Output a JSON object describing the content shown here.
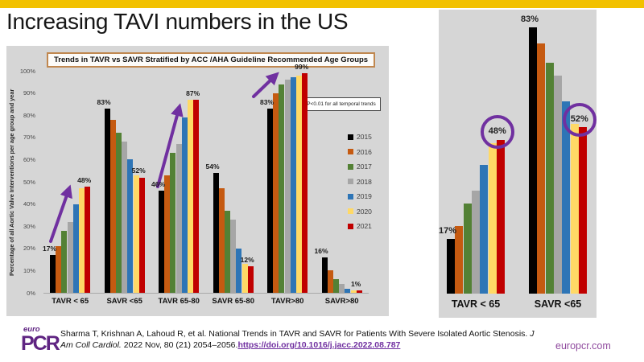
{
  "slide": {
    "title": "Increasing TAVI numbers in the US"
  },
  "colors": {
    "top_bar": "#F2C100",
    "panel_bg": "#D6D6D6",
    "accent_purple": "#7030A0",
    "logo_purple": "#5F2482",
    "website_purple": "#8F4A9E"
  },
  "chart_data": [
    {
      "id": "main",
      "type": "bar",
      "title": "Trends in TAVR vs SAVR Stratified by ACC /AHA Guideline Recommended Age Groups",
      "xlabel": "",
      "ylabel": "Percentage of all Aortic Valve Interventions per age group and year",
      "note": "P<0.01 for all temporal trends",
      "ylim": [
        0,
        100
      ],
      "grid": false,
      "legend_position": "right",
      "y_ticks": [
        "0%",
        "10%",
        "20%",
        "30%",
        "40%",
        "50%",
        "60%",
        "70%",
        "80%",
        "90%",
        "100%"
      ],
      "categories": [
        "TAVR < 65",
        "SAVR <65",
        "TAVR 65-80",
        "SAVR 65-80",
        "TAVR>80",
        "SAVR>80"
      ],
      "series": [
        {
          "name": "2015",
          "color": "#000000",
          "values": [
            17,
            83,
            46,
            54,
            83,
            16
          ]
        },
        {
          "name": "2016",
          "color": "#C55A11",
          "values": [
            21,
            78,
            53,
            47,
            90,
            10
          ]
        },
        {
          "name": "2017",
          "color": "#538135",
          "values": [
            28,
            72,
            63,
            37,
            94,
            6
          ]
        },
        {
          "name": "2018",
          "color": "#A6A6A6",
          "values": [
            32,
            68,
            67,
            33,
            96,
            4
          ]
        },
        {
          "name": "2019",
          "color": "#2E75B6",
          "values": [
            40,
            60,
            79,
            20,
            97,
            2
          ]
        },
        {
          "name": "2020",
          "color": "#FFD966",
          "values": [
            47,
            53,
            87,
            13,
            98,
            1
          ]
        },
        {
          "name": "2021",
          "color": "#C00000",
          "values": [
            48,
            52,
            87,
            12,
            99,
            1
          ]
        }
      ],
      "data_labels": [
        {
          "cat": 0,
          "year": "2015",
          "text": "17%"
        },
        {
          "cat": 0,
          "year": "2021",
          "text": "48%"
        },
        {
          "cat": 1,
          "year": "2015",
          "text": "83%"
        },
        {
          "cat": 1,
          "year": "2021",
          "text": "52%"
        },
        {
          "cat": 2,
          "year": "2015",
          "text": "46%"
        },
        {
          "cat": 2,
          "year": "2021",
          "text": "87%"
        },
        {
          "cat": 3,
          "year": "2015",
          "text": "54%"
        },
        {
          "cat": 3,
          "year": "2021",
          "text": "12%"
        },
        {
          "cat": 4,
          "year": "2015",
          "text": "83%"
        },
        {
          "cat": 4,
          "year": "2021",
          "text": "99%"
        },
        {
          "cat": 5,
          "year": "2015",
          "text": "16%"
        },
        {
          "cat": 5,
          "year": "2021",
          "text": "1%"
        }
      ],
      "arrows_on_categories": [
        "TAVR < 65",
        "TAVR 65-80",
        "TAVR>80"
      ]
    },
    {
      "id": "zoom",
      "type": "bar",
      "title": "",
      "ylim": [
        0,
        100
      ],
      "axes_visible": false,
      "categories": [
        "TAVR < 65",
        "SAVR <65"
      ],
      "series": [
        {
          "name": "2015",
          "color": "#000000",
          "values": [
            17,
            83
          ]
        },
        {
          "name": "2016",
          "color": "#C55A11",
          "values": [
            21,
            78
          ]
        },
        {
          "name": "2017",
          "color": "#538135",
          "values": [
            28,
            72
          ]
        },
        {
          "name": "2018",
          "color": "#A6A6A6",
          "values": [
            32,
            68
          ]
        },
        {
          "name": "2019",
          "color": "#2E75B6",
          "values": [
            40,
            60
          ]
        },
        {
          "name": "2020",
          "color": "#FFD966",
          "values": [
            47,
            53
          ]
        },
        {
          "name": "2021",
          "color": "#C00000",
          "values": [
            48,
            52
          ]
        }
      ],
      "data_labels": [
        {
          "cat": 0,
          "year": "2015",
          "text": "17%"
        },
        {
          "cat": 0,
          "year": "2021",
          "text": "48%",
          "circled": true
        },
        {
          "cat": 1,
          "year": "2015",
          "text": "83%"
        },
        {
          "cat": 1,
          "year": "2021",
          "text": "52%",
          "circled": true
        }
      ]
    }
  ],
  "footer": {
    "logo_top": "euro",
    "logo_main": "PCR",
    "citation_line1": "Sharma T, Krishnan A, Lahoud R, et al. National Trends in TAVR and SAVR for Patients With Severe Isolated Aortic Stenosis. ",
    "citation_line1_italic": "J",
    "citation_line2_italic": "Am Coll Cardiol.",
    "citation_line2": " 2022 Nov, 80 (21) 2054–2056.",
    "citation_link": "https://doi.org/10.1016/j.jacc.2022.08.787",
    "website": "europcr.com"
  }
}
